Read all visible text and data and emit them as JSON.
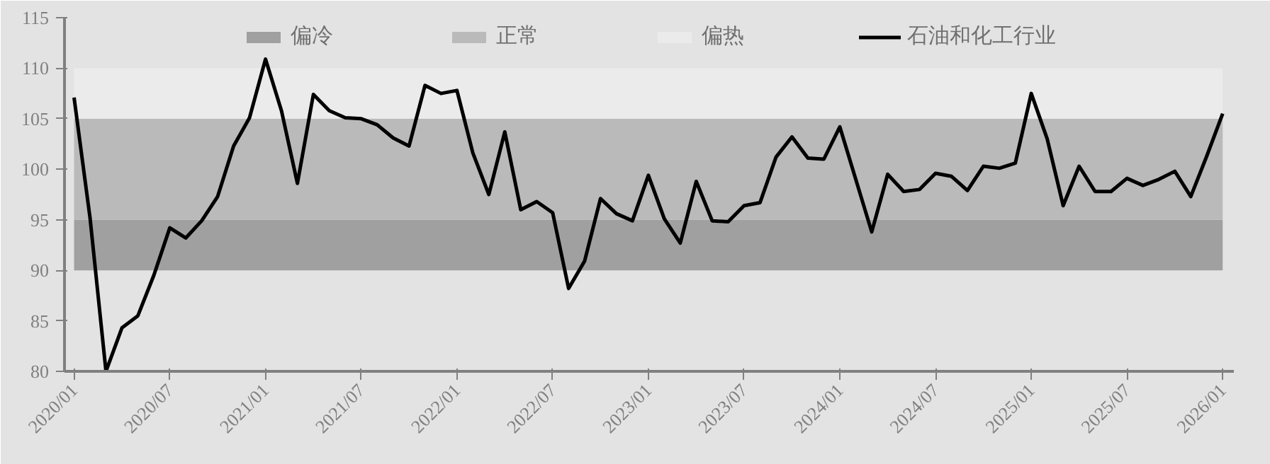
{
  "chart_data": {
    "type": "line",
    "categories": [
      "2020/01",
      null,
      null,
      null,
      null,
      null,
      "2020/07",
      null,
      null,
      null,
      null,
      null,
      "2021/01",
      null,
      null,
      null,
      null,
      null,
      "2021/07",
      null,
      null,
      null,
      null,
      null,
      "2022/01",
      null,
      null,
      null,
      null,
      null,
      "2022/07",
      null,
      null,
      null,
      null,
      null,
      "2023/01",
      null,
      null,
      null,
      null,
      null,
      "2023/07",
      null,
      null,
      null,
      null,
      null,
      "2024/01",
      null,
      null,
      null,
      null,
      null,
      "2024/07",
      null,
      null,
      null,
      null,
      null,
      "2025/01",
      null,
      null,
      null,
      null,
      null,
      "2025/07",
      null,
      null,
      null,
      null,
      null,
      "2026/01"
    ],
    "series": [
      {
        "name": "石油和化工行业",
        "color": "#000000",
        "values": [
          107.1,
          95.2,
          80,
          84.3,
          85.5,
          89.5,
          94.2,
          93.2,
          94.9,
          97.3,
          102.3,
          105.1,
          110.9,
          105.8,
          98.6,
          107.4,
          105.8,
          105.1,
          105.0,
          104.4,
          103.1,
          102.3,
          108.3,
          107.5,
          107.8,
          101.6,
          97.5,
          103.7,
          96.0,
          96.8,
          95.7,
          88.2,
          90.9,
          97.1,
          95.6,
          94.9,
          99.4,
          95.1,
          92.7,
          98.8,
          94.9,
          94.8,
          96.4,
          96.7,
          101.2,
          103.2,
          101.1,
          101.0,
          104.2,
          99.0,
          93.8,
          99.5,
          97.8,
          98.0,
          99.6,
          99.3,
          97.9,
          100.3,
          100.1,
          100.6,
          107.5,
          103.0,
          96.4,
          100.3,
          97.8,
          97.8,
          99.1,
          98.4,
          99.0,
          99.8,
          97.3,
          101.3,
          105.5
        ]
      }
    ],
    "bands": [
      {
        "axis": "y",
        "from": 90,
        "to": 95,
        "label": "偏冷",
        "color": "#a0a0a0"
      },
      {
        "axis": "y",
        "from": 95,
        "to": 105,
        "label": "正常",
        "color": "#bababa"
      },
      {
        "axis": "y",
        "from": 105,
        "to": 110,
        "label": "偏热",
        "color": "#ebebeb"
      }
    ],
    "ylim": [
      80,
      115
    ],
    "yticks": [
      80,
      85,
      90,
      95,
      100,
      105,
      110,
      115
    ],
    "legend": "top",
    "marker": "none",
    "line_style": "solid"
  }
}
